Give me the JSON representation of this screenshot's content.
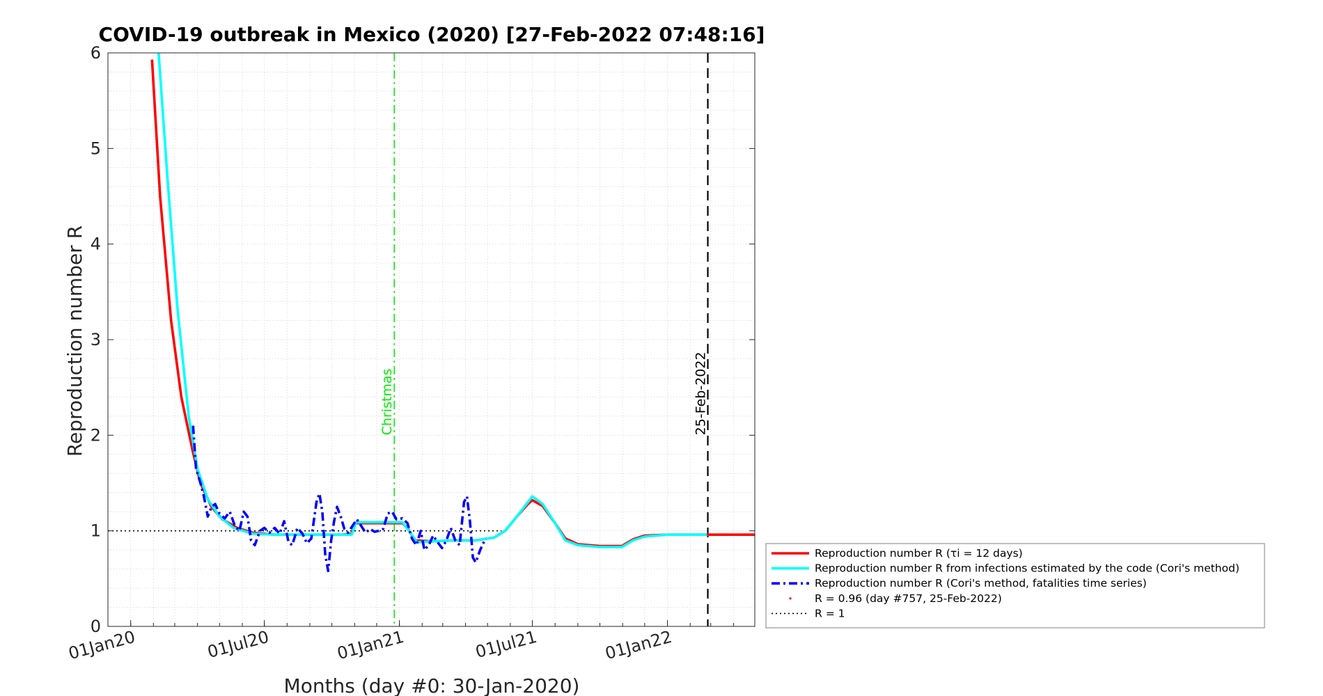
{
  "chart_data": {
    "type": "line",
    "title": "COVID-19 outbreak in Mexico (2020) [27-Feb-2022 07:48:16]",
    "xlabel": "Months (day #0: 30-Jan-2020)",
    "ylabel": "Reproduction number R",
    "xlim": [
      "2019-12-01",
      "2022-04-30"
    ],
    "ylim": [
      0,
      6
    ],
    "yticks": [
      0,
      1,
      2,
      3,
      4,
      5,
      6
    ],
    "xticks": [
      {
        "date": "2020-01-01",
        "label": "01Jan20"
      },
      {
        "date": "2020-07-01",
        "label": "01Jul20"
      },
      {
        "date": "2021-01-01",
        "label": "01Jan21"
      },
      {
        "date": "2021-07-01",
        "label": "01Jul21"
      },
      {
        "date": "2022-01-01",
        "label": "01Jan22"
      }
    ],
    "grid": "minor-dotted",
    "legend_position": "outside-right",
    "series": [
      {
        "name": "Reproduction number R (τi = 12 days)",
        "color": "#ff0000",
        "style": "solid",
        "points": [
          [
            "2020-01-30",
            5.93
          ],
          [
            "2020-02-10",
            4.5
          ],
          [
            "2020-02-25",
            3.2
          ],
          [
            "2020-03-10",
            2.4
          ],
          [
            "2020-03-25",
            1.85
          ],
          [
            "2020-04-05",
            1.5
          ],
          [
            "2020-04-20",
            1.25
          ],
          [
            "2020-05-05",
            1.12
          ],
          [
            "2020-05-25",
            1.03
          ],
          [
            "2020-06-15",
            0.98
          ],
          [
            "2020-07-15",
            0.96
          ],
          [
            "2020-09-01",
            0.96
          ],
          [
            "2020-10-15",
            0.96
          ],
          [
            "2020-10-28",
            0.97
          ],
          [
            "2020-11-02",
            1.08
          ],
          [
            "2020-12-15",
            1.08
          ],
          [
            "2021-01-05",
            1.08
          ],
          [
            "2021-01-12",
            1.03
          ],
          [
            "2021-01-22",
            0.9
          ],
          [
            "2021-02-15",
            0.89
          ],
          [
            "2021-03-15",
            0.9
          ],
          [
            "2021-04-15",
            0.9
          ],
          [
            "2021-05-10",
            0.93
          ],
          [
            "2021-05-25",
            1.0
          ],
          [
            "2021-06-10",
            1.15
          ],
          [
            "2021-06-25",
            1.28
          ],
          [
            "2021-07-01",
            1.32
          ],
          [
            "2021-07-15",
            1.26
          ],
          [
            "2021-08-01",
            1.08
          ],
          [
            "2021-08-15",
            0.92
          ],
          [
            "2021-09-01",
            0.86
          ],
          [
            "2021-10-01",
            0.84
          ],
          [
            "2021-10-31",
            0.84
          ],
          [
            "2021-11-15",
            0.91
          ],
          [
            "2021-12-01",
            0.95
          ],
          [
            "2022-01-01",
            0.96
          ],
          [
            "2022-02-25",
            0.96
          ],
          [
            "2022-04-30",
            0.96
          ]
        ]
      },
      {
        "name": "Reproduction number R from infections estimated by the code (Cori's method)",
        "color": "#00ffff",
        "style": "solid",
        "points": [
          [
            "2020-02-08",
            6.0
          ],
          [
            "2020-02-20",
            4.7
          ],
          [
            "2020-03-05",
            3.3
          ],
          [
            "2020-03-20",
            2.2
          ],
          [
            "2020-04-01",
            1.65
          ],
          [
            "2020-04-15",
            1.33
          ],
          [
            "2020-05-01",
            1.15
          ],
          [
            "2020-05-20",
            1.03
          ],
          [
            "2020-06-15",
            0.97
          ],
          [
            "2020-07-15",
            0.96
          ],
          [
            "2020-10-28",
            0.96
          ],
          [
            "2020-11-03",
            1.09
          ],
          [
            "2020-12-15",
            1.09
          ],
          [
            "2021-01-05",
            1.09
          ],
          [
            "2021-01-14",
            1.0
          ],
          [
            "2021-01-25",
            0.88
          ],
          [
            "2021-02-15",
            0.89
          ],
          [
            "2021-03-15",
            0.9
          ],
          [
            "2021-04-15",
            0.9
          ],
          [
            "2021-05-10",
            0.93
          ],
          [
            "2021-05-25",
            1.0
          ],
          [
            "2021-06-10",
            1.15
          ],
          [
            "2021-06-25",
            1.3
          ],
          [
            "2021-07-01",
            1.36
          ],
          [
            "2021-07-15",
            1.28
          ],
          [
            "2021-08-01",
            1.08
          ],
          [
            "2021-08-15",
            0.9
          ],
          [
            "2021-09-01",
            0.85
          ],
          [
            "2021-10-01",
            0.83
          ],
          [
            "2021-10-31",
            0.83
          ],
          [
            "2021-11-15",
            0.9
          ],
          [
            "2021-12-01",
            0.94
          ],
          [
            "2022-01-01",
            0.96
          ],
          [
            "2022-02-25",
            0.96
          ]
        ]
      },
      {
        "name": "Reproduction number R (Cori's method, fatalities time series)",
        "color": "#0000ff",
        "style": "dashdot",
        "points": [
          [
            "2020-03-26",
            2.1
          ],
          [
            "2020-03-30",
            1.65
          ],
          [
            "2020-04-05",
            1.5
          ],
          [
            "2020-04-10",
            1.35
          ],
          [
            "2020-04-15",
            1.15
          ],
          [
            "2020-04-20",
            1.25
          ],
          [
            "2020-04-25",
            1.28
          ],
          [
            "2020-05-01",
            1.18
          ],
          [
            "2020-05-08",
            1.13
          ],
          [
            "2020-05-15",
            1.2
          ],
          [
            "2020-05-22",
            1.05
          ],
          [
            "2020-05-28",
            1.0
          ],
          [
            "2020-06-03",
            1.2
          ],
          [
            "2020-06-08",
            1.15
          ],
          [
            "2020-06-13",
            0.9
          ],
          [
            "2020-06-18",
            0.85
          ],
          [
            "2020-06-25",
            1.0
          ],
          [
            "2020-07-01",
            1.03
          ],
          [
            "2020-07-08",
            0.98
          ],
          [
            "2020-07-15",
            1.03
          ],
          [
            "2020-07-22",
            0.97
          ],
          [
            "2020-07-28",
            1.1
          ],
          [
            "2020-08-03",
            0.88
          ],
          [
            "2020-08-08",
            0.85
          ],
          [
            "2020-08-15",
            1.03
          ],
          [
            "2020-08-22",
            0.97
          ],
          [
            "2020-08-28",
            0.87
          ],
          [
            "2020-09-03",
            0.92
          ],
          [
            "2020-09-10",
            1.3
          ],
          [
            "2020-09-14",
            1.39
          ],
          [
            "2020-09-18",
            1.2
          ],
          [
            "2020-09-22",
            0.75
          ],
          [
            "2020-09-26",
            0.58
          ],
          [
            "2020-09-30",
            0.9
          ],
          [
            "2020-10-04",
            1.1
          ],
          [
            "2020-10-08",
            1.25
          ],
          [
            "2020-10-13",
            1.15
          ],
          [
            "2020-10-18",
            1.02
          ],
          [
            "2020-10-23",
            0.98
          ],
          [
            "2020-10-29",
            1.05
          ],
          [
            "2020-11-04",
            1.12
          ],
          [
            "2020-11-10",
            1.05
          ],
          [
            "2020-11-16",
            0.98
          ],
          [
            "2020-11-22",
            1.02
          ],
          [
            "2020-11-28",
            0.99
          ],
          [
            "2020-12-04",
            1.0
          ],
          [
            "2020-12-10",
            1.02
          ],
          [
            "2020-12-16",
            1.18
          ],
          [
            "2020-12-22",
            1.2
          ],
          [
            "2020-12-28",
            1.12
          ],
          [
            "2021-01-05",
            1.13
          ],
          [
            "2021-01-12",
            1.08
          ],
          [
            "2021-01-18",
            0.92
          ],
          [
            "2021-01-24",
            0.85
          ],
          [
            "2021-01-30",
            1.0
          ],
          [
            "2021-02-04",
            0.8
          ],
          [
            "2021-02-10",
            0.85
          ],
          [
            "2021-02-16",
            0.95
          ],
          [
            "2021-02-22",
            0.88
          ],
          [
            "2021-02-28",
            0.82
          ],
          [
            "2021-03-06",
            0.9
          ],
          [
            "2021-03-12",
            1.03
          ],
          [
            "2021-03-18",
            0.9
          ],
          [
            "2021-03-24",
            0.85
          ],
          [
            "2021-03-30",
            1.3
          ],
          [
            "2021-04-03",
            1.36
          ],
          [
            "2021-04-07",
            1.1
          ],
          [
            "2021-04-11",
            0.72
          ],
          [
            "2021-04-15",
            0.67
          ],
          [
            "2021-04-21",
            0.8
          ],
          [
            "2021-04-27",
            0.9
          ]
        ]
      }
    ],
    "marker": {
      "name": "R = 0.96 (day #757, 25-Feb-2022)",
      "date": "2022-02-25",
      "value": 0.96,
      "color": "#ff0000"
    },
    "reference_line": {
      "name": "R = 1",
      "value": 1,
      "color": "#000000",
      "style": "dotted"
    },
    "vertical_lines": [
      {
        "date": "2020-12-25",
        "label": "Christmas",
        "color": "#00ee00",
        "style": "dashdot"
      },
      {
        "date": "2022-02-25",
        "label": "25-Feb-2022",
        "color": "#000000",
        "style": "dashed"
      }
    ]
  }
}
